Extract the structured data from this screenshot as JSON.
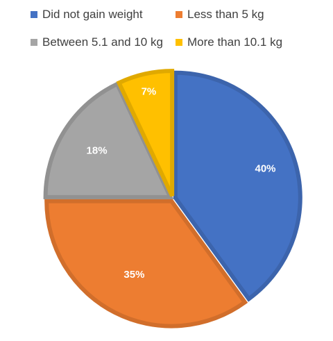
{
  "chart_data": {
    "type": "pie",
    "legend_position": "top",
    "slices": [
      {
        "label": "Did not gain weight",
        "value": 40,
        "data_label": "40%",
        "color": "#4472C4"
      },
      {
        "label": "Less than 5 kg",
        "value": 35,
        "data_label": "35%",
        "color": "#ED7D31"
      },
      {
        "label": "Between 5.1 and 10 kg",
        "value": 18,
        "data_label": "18%",
        "color": "#A5A5A5"
      },
      {
        "label": "More than 10.1 kg",
        "value": 7,
        "data_label": "7%",
        "color": "#FFC000"
      }
    ]
  }
}
